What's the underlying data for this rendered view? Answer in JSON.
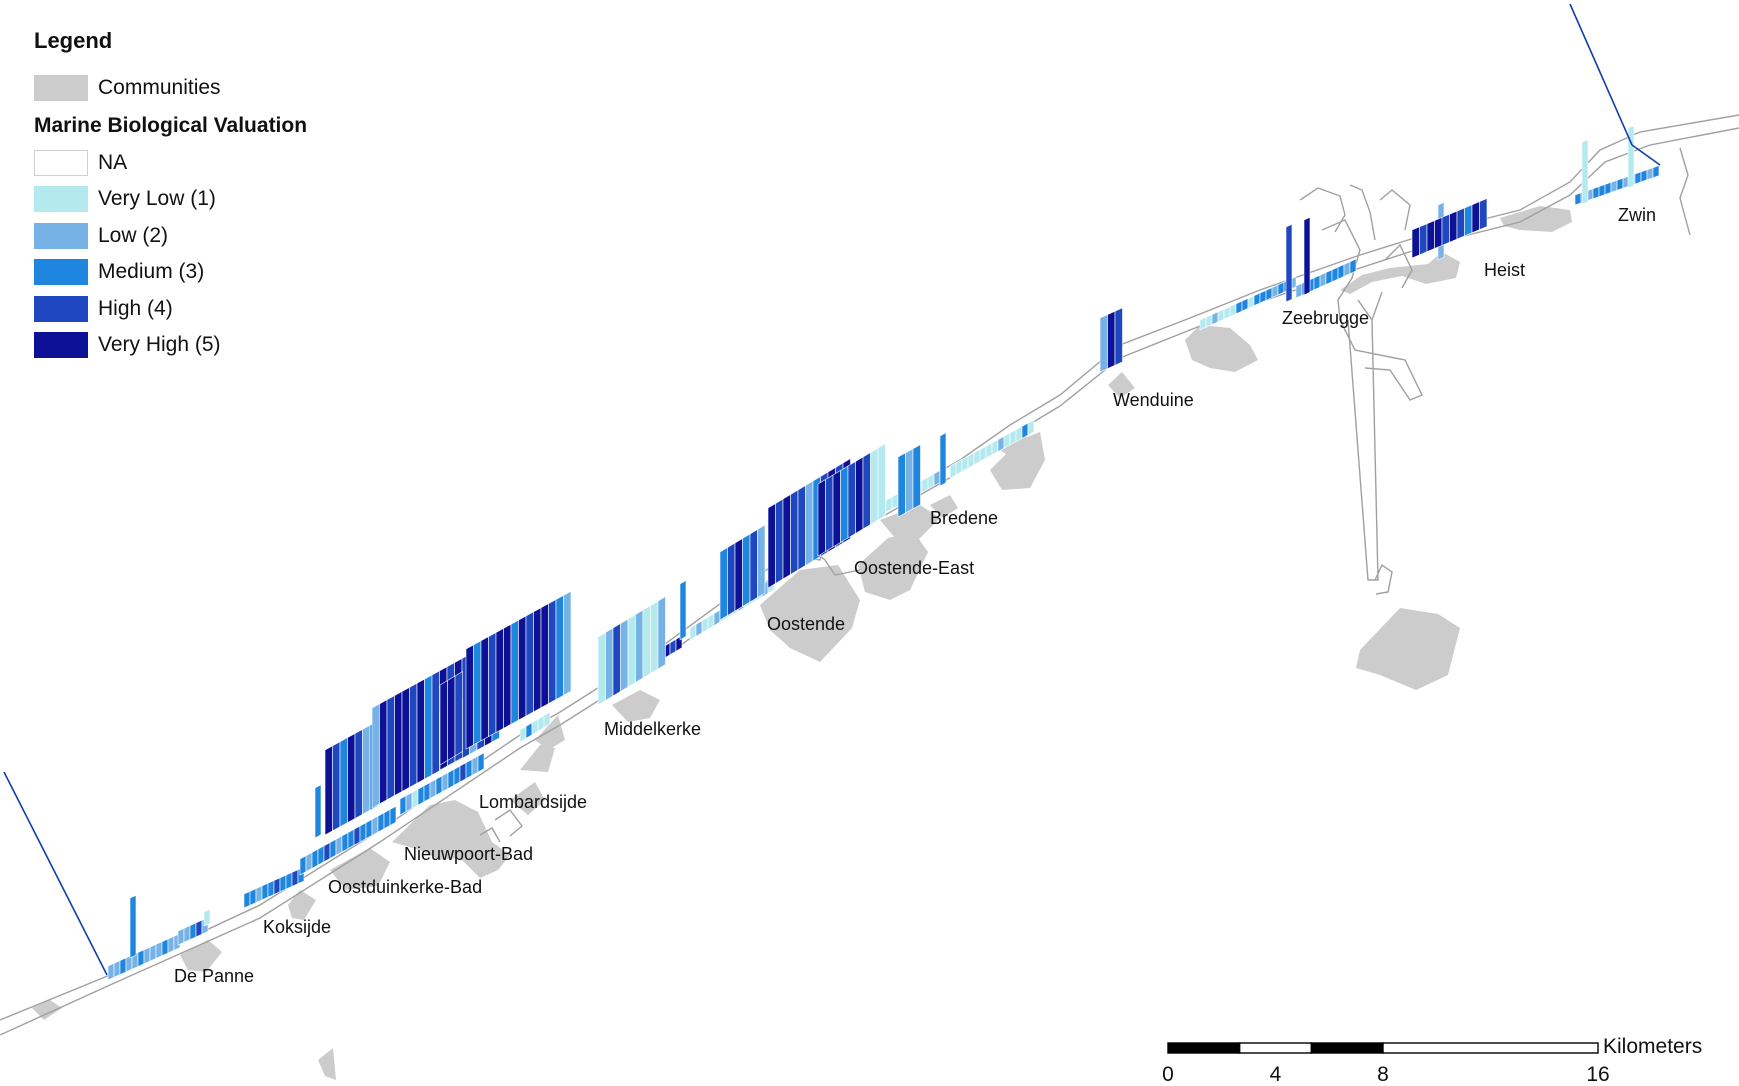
{
  "legend": {
    "title": "Legend",
    "communities": {
      "label": "Communities",
      "color": "#cccccc"
    },
    "valuation_heading": "Marine Biological Valuation",
    "classes": [
      {
        "label": "NA",
        "color": "#ffffff",
        "value": null
      },
      {
        "label": "Very Low (1)",
        "color": "#b4e9ee",
        "value": 1
      },
      {
        "label": "Low (2)",
        "color": "#76b2e6",
        "value": 2
      },
      {
        "label": "Medium (3)",
        "color": "#1f86e0",
        "value": 3
      },
      {
        "label": "High (4)",
        "color": "#1f48c0",
        "value": 4
      },
      {
        "label": "Very High (5)",
        "color": "#0c1196",
        "value": 5
      }
    ]
  },
  "places": [
    "De Panne",
    "Koksijde",
    "Oostduinkerke-Bad",
    "Nieuwpoort-Bad",
    "Lombardsijde",
    "Middelkerke",
    "Oostende",
    "Oostende-East",
    "Bredene",
    "Wenduine",
    "Zeebrugge",
    "Heist",
    "Zwin"
  ],
  "scale_bar": {
    "unit": "Kilometers",
    "ticks": [
      "0",
      "4",
      "8",
      "16"
    ]
  },
  "colors": {
    "community_fill": "#cccccc",
    "border_line": "#1040a8",
    "coast_outline": "#a0a0a0"
  }
}
